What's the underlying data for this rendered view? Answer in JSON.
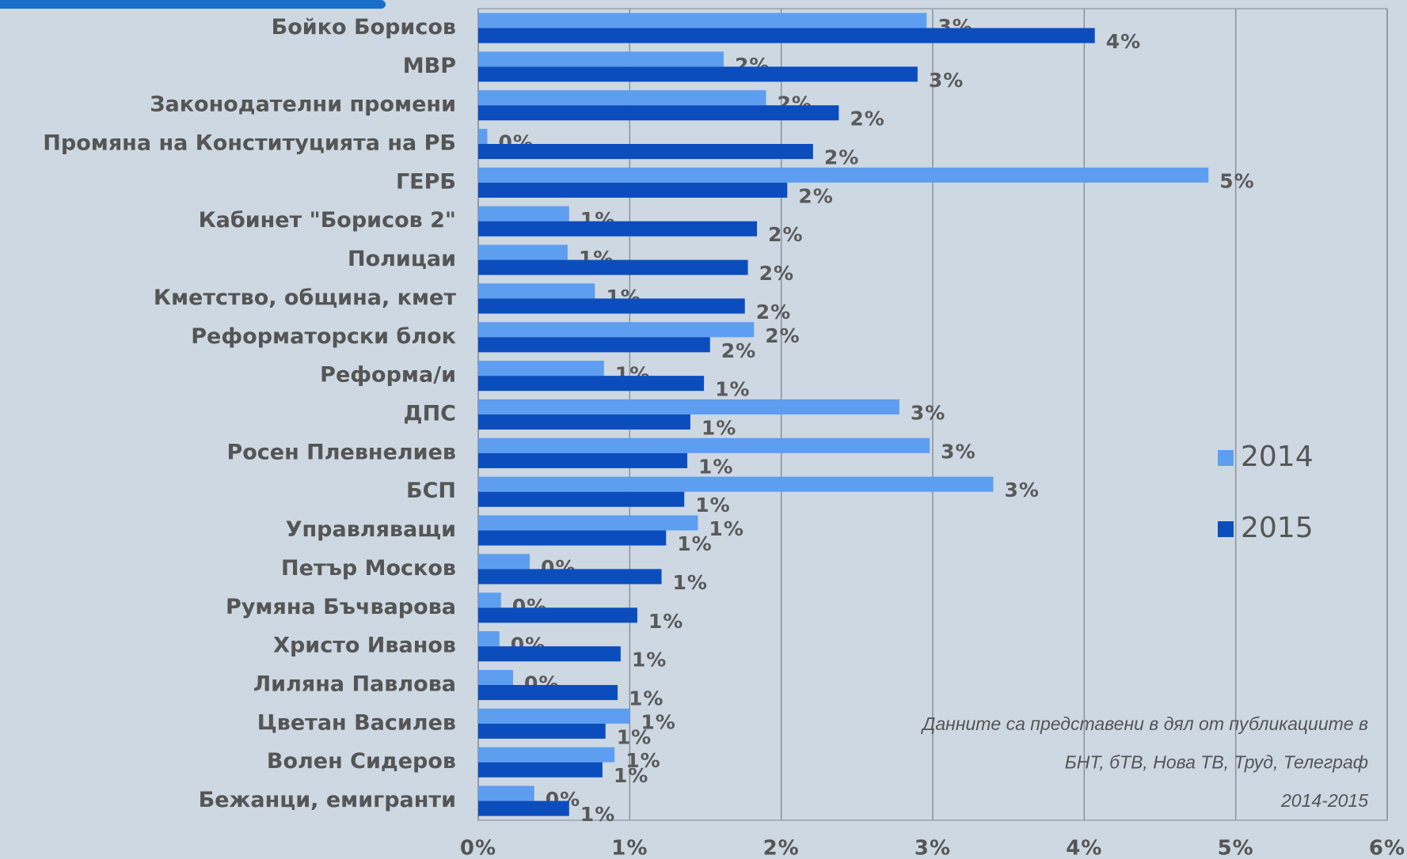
{
  "chart_data": {
    "type": "hbar",
    "categories": [
      "Бойко Борисов",
      "МВР",
      "Законодателни промени",
      "Промяна на Конституцията на РБ",
      "ГЕРБ",
      "Кабинет \"Борисов 2\"",
      "Полицаи",
      "Кметство, община, кмет",
      "Реформаторски блок",
      "Реформа/и",
      "ДПС",
      "Росен Плевнелиев",
      "БСП",
      "Управляващи",
      "Петър Москов",
      "Румяна Бъчварова",
      "Христо Иванов",
      "Лиляна Павлова",
      "Цветан Василев",
      "Волен Сидеров",
      "Бежанци, емигранти"
    ],
    "series": [
      {
        "name": "2014",
        "color": "#5e9ef0",
        "values": [
          2.96,
          1.62,
          1.9,
          0.06,
          4.82,
          0.6,
          0.59,
          0.77,
          1.82,
          0.83,
          2.78,
          2.98,
          3.4,
          1.45,
          0.34,
          0.15,
          0.14,
          0.23,
          1.0,
          0.9,
          0.37
        ],
        "value_labels": [
          "3%",
          "2%",
          "2%",
          "0%",
          "5%",
          "1%",
          "1%",
          "1%",
          "2%",
          "1%",
          "3%",
          "3%",
          "3%",
          "1%",
          "0%",
          "0%",
          "0%",
          "0%",
          "1%",
          "1%",
          "0%"
        ]
      },
      {
        "name": "2015",
        "color": "#0b4dbd",
        "values": [
          4.07,
          2.9,
          2.38,
          2.21,
          2.04,
          1.84,
          1.78,
          1.76,
          1.53,
          1.49,
          1.4,
          1.38,
          1.36,
          1.24,
          1.21,
          1.05,
          0.94,
          0.92,
          0.84,
          0.82,
          0.6
        ],
        "value_labels": [
          "4%",
          "3%",
          "2%",
          "2%",
          "2%",
          "2%",
          "2%",
          "2%",
          "2%",
          "1%",
          "1%",
          "1%",
          "1%",
          "1%",
          "1%",
          "1%",
          "1%",
          "1%",
          "1%",
          "1%",
          "1%"
        ]
      }
    ],
    "xlim": [
      0,
      6
    ],
    "xticks": [
      {
        "value": 0,
        "label": "0%"
      },
      {
        "value": 1,
        "label": "1%"
      },
      {
        "value": 2,
        "label": "2%"
      },
      {
        "value": 3,
        "label": "3%"
      },
      {
        "value": 4,
        "label": "4%"
      },
      {
        "value": 5,
        "label": "5%"
      },
      {
        "value": 6,
        "label": "6%"
      }
    ],
    "grid": true,
    "legend": "right",
    "annotations": [
      "Данните са представени в дял от публикациите в",
      "БНТ, бТВ, Нова ТВ, Труд, Телеграф",
      "2014-2015"
    ]
  }
}
